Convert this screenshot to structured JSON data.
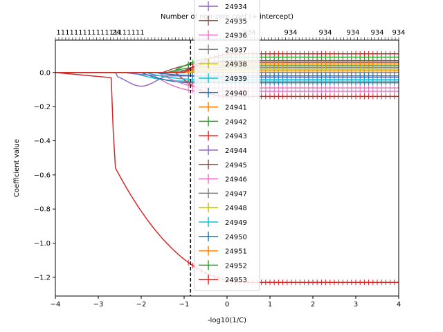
{
  "chart_data": {
    "type": "line",
    "title": "",
    "top_axis_label": "Number of non-zero coef (+ intercept)",
    "xlabel": "-log10(1/C)",
    "ylabel": "Coefficient value",
    "xlim": [
      -4,
      4
    ],
    "ylim": [
      -1.31,
      0.19
    ],
    "x_ticks": [
      -4,
      -3,
      -2,
      -1,
      0,
      1,
      2,
      3,
      4
    ],
    "x_tick_labels": [
      "−4",
      "−3",
      "−2",
      "−1",
      "0",
      "1",
      "2",
      "3",
      "4"
    ],
    "y_ticks": [
      0.0,
      -0.2,
      -0.4,
      -0.6,
      -0.8,
      -1.0,
      -1.2
    ],
    "y_tick_labels": [
      "0.0",
      "−0.2",
      "−0.4",
      "−0.6",
      "−0.8",
      "−1.0",
      "−1.2"
    ],
    "top_tick_labels": [
      "11111111111111111111",
      "24",
      "934",
      "934",
      "934",
      "934",
      "934",
      "934"
    ],
    "vline": {
      "x": -0.85,
      "style": "dashed",
      "color": "#000000"
    },
    "grid": false,
    "legend_placement": "center (overlapping top)",
    "colors": [
      "#1f77b4",
      "#ff7f0e",
      "#2ca02c",
      "#d62728",
      "#9467bd",
      "#8c564b",
      "#e377c2",
      "#7f7f7f",
      "#bcbd22",
      "#17becf"
    ],
    "series": [
      {
        "name": "24934",
        "color": "#9467bd",
        "final": -0.03,
        "shape": "dip",
        "dip_x": -2.0,
        "dip_y": -0.08
      },
      {
        "name": "24935",
        "color": "#8c564b",
        "final": 0.06,
        "shape": "rise",
        "onset": -1.5
      },
      {
        "name": "24936",
        "color": "#e377c2",
        "final": -0.11,
        "shape": "fall",
        "onset": -1.8
      },
      {
        "name": "24937",
        "color": "#7f7f7f",
        "final": 0.03,
        "shape": "rise",
        "onset": -1.3
      },
      {
        "name": "24938",
        "color": "#bcbd22",
        "final": 0.02,
        "shape": "rise",
        "onset": -1.2
      },
      {
        "name": "24939",
        "color": "#17becf",
        "final": -0.05,
        "shape": "fall",
        "onset": -2.2
      },
      {
        "name": "24940",
        "color": "#1f77b4",
        "final": -0.06,
        "shape": "fall",
        "onset": -2.0
      },
      {
        "name": "24941",
        "color": "#ff7f0e",
        "final": 0.01,
        "shape": "rise",
        "onset": -1.0
      },
      {
        "name": "24942",
        "color": "#2ca02c",
        "final": 0.04,
        "shape": "rise",
        "onset": -1.4
      },
      {
        "name": "24943",
        "color": "#d62728",
        "final": -0.14,
        "shape": "fall",
        "onset": -1.2
      },
      {
        "name": "24944",
        "color": "#9467bd",
        "final": -0.02,
        "shape": "fall",
        "onset": -2.4
      },
      {
        "name": "24945",
        "color": "#8c564b",
        "final": 0.07,
        "shape": "rise",
        "onset": -1.1
      },
      {
        "name": "24946",
        "color": "#e377c2",
        "final": -0.09,
        "shape": "fall",
        "onset": -1.6
      },
      {
        "name": "24947",
        "color": "#7f7f7f",
        "final": 0.0,
        "shape": "flat",
        "onset": -1.0
      },
      {
        "name": "24948",
        "color": "#bcbd22",
        "final": 0.02,
        "shape": "rise",
        "onset": -0.9
      },
      {
        "name": "24949",
        "color": "#17becf",
        "final": -0.04,
        "shape": "fall",
        "onset": -1.9
      },
      {
        "name": "24950",
        "color": "#1f77b4",
        "final": -0.02,
        "shape": "fall",
        "onset": -1.7
      },
      {
        "name": "24951",
        "color": "#ff7f0e",
        "final": 0.05,
        "shape": "rise",
        "onset": -1.0
      },
      {
        "name": "24952",
        "color": "#2ca02c",
        "final": 0.09,
        "shape": "rise",
        "onset": -1.3
      },
      {
        "name": "24953",
        "color": "#d62728",
        "final": -1.23,
        "shape": "main"
      },
      {
        "name": "",
        "color": "#d62728",
        "final": 0.11,
        "shape": "rise",
        "onset": -1.0
      }
    ]
  }
}
